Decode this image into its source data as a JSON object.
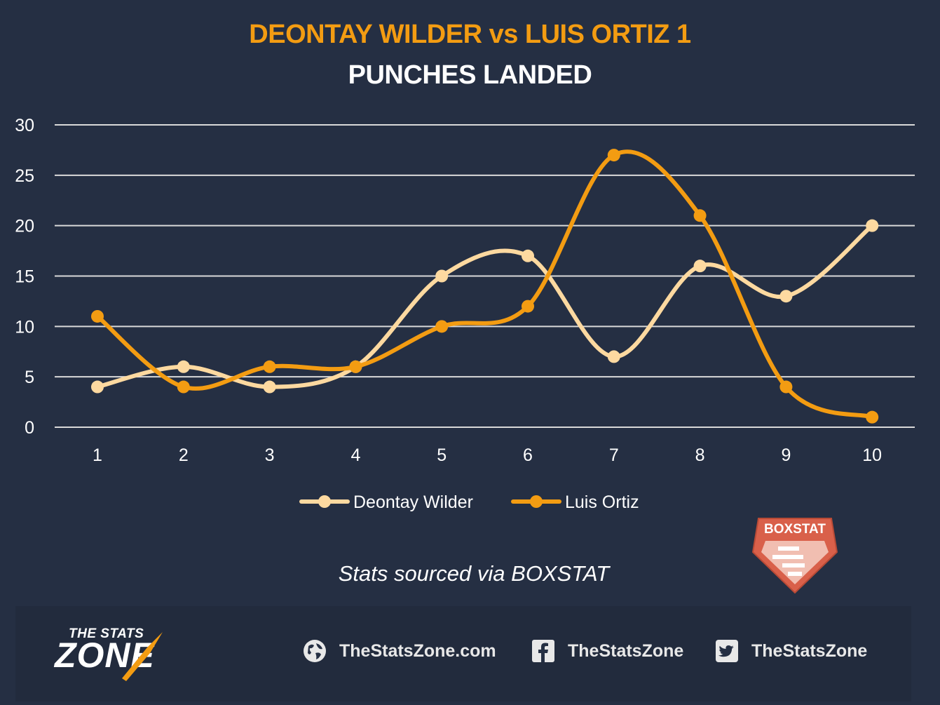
{
  "header": {
    "title": "DEONTAY WILDER vs LUIS ORTIZ 1",
    "subtitle": "PUNCHES LANDED",
    "title_color": "#f39c12"
  },
  "chart_data": {
    "type": "line",
    "title": "DEONTAY WILDER vs LUIS ORTIZ 1",
    "subtitle": "PUNCHES LANDED",
    "xlabel": "",
    "ylabel": "",
    "x": [
      1,
      2,
      3,
      4,
      5,
      6,
      7,
      8,
      9,
      10
    ],
    "ylim": [
      0,
      30
    ],
    "yticks": [
      0,
      5,
      10,
      15,
      20,
      25,
      30
    ],
    "grid": true,
    "smooth": true,
    "legend_position": "bottom",
    "series": [
      {
        "name": "Deontay Wilder",
        "color": "#fdd9a0",
        "values": [
          4,
          6,
          4,
          6,
          15,
          17,
          7,
          16,
          13,
          20
        ]
      },
      {
        "name": "Luis Ortiz",
        "color": "#f39c12",
        "values": [
          11,
          4,
          6,
          6,
          10,
          12,
          27,
          21,
          4,
          1
        ]
      }
    ]
  },
  "source_note": "Stats sourced via BOXSTAT",
  "footer": {
    "logo_top": "THE STATS",
    "logo_main": "ZONE",
    "website": "TheStatsZone.com",
    "facebook": "TheStatsZone",
    "twitter": "TheStatsZone",
    "icons": [
      "globe-icon",
      "facebook-icon",
      "twitter-icon"
    ]
  },
  "badge": {
    "label": "BOXSTAT",
    "color": "#d9604a"
  }
}
